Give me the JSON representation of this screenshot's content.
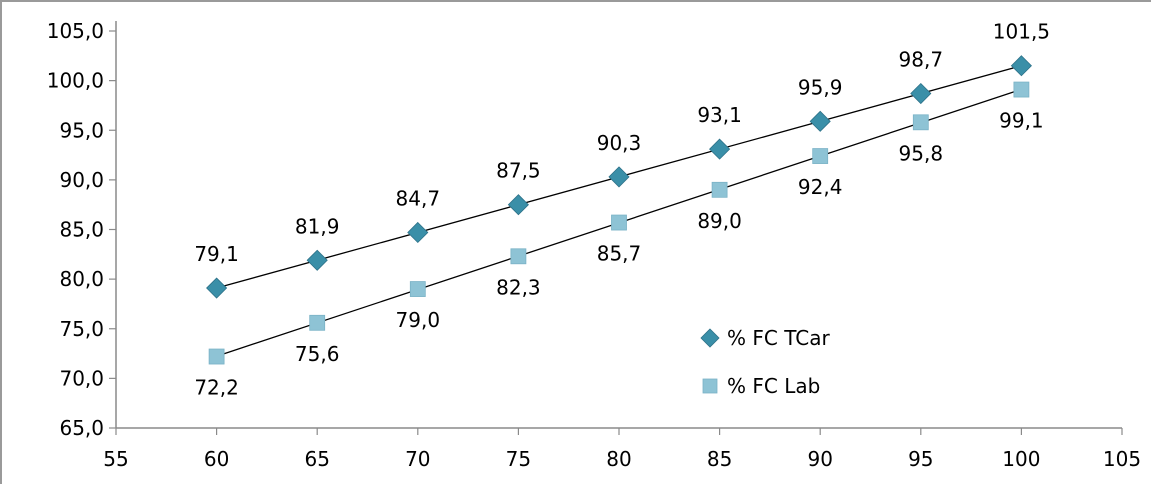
{
  "chart_data": {
    "type": "scatter",
    "title": "",
    "xlabel": "",
    "ylabel": "",
    "xlim": [
      55,
      105
    ],
    "ylim": [
      65,
      105
    ],
    "x_ticks": [
      55,
      60,
      65,
      70,
      75,
      80,
      85,
      90,
      95,
      100,
      105
    ],
    "x_tick_labels": [
      "55",
      "60",
      "65",
      "70",
      "75",
      "80",
      "85",
      "90",
      "95",
      "100",
      "105"
    ],
    "y_ticks": [
      65,
      70,
      75,
      80,
      85,
      90,
      95,
      100,
      105
    ],
    "y_tick_labels": [
      "65,0",
      "70,0",
      "75,0",
      "80,0",
      "85,0",
      "90,0",
      "95,0",
      "100,0",
      "105,0"
    ],
    "grid": false,
    "trendlines": true,
    "legend_position": "lower-right-inside",
    "series": [
      {
        "name": "% FC TCar",
        "marker": "diamond",
        "color": "#3a8fa8",
        "x": [
          60,
          65,
          70,
          75,
          80,
          85,
          90,
          95,
          100
        ],
        "y": [
          79.1,
          81.9,
          84.7,
          87.5,
          90.3,
          93.1,
          95.9,
          98.7,
          101.5
        ],
        "labels": [
          "79,1",
          "81,9",
          "84,7",
          "87,5",
          "90,3",
          "93,1",
          "95,9",
          "98,7",
          "101,5"
        ],
        "label_position": "above"
      },
      {
        "name": "% FC Lab",
        "marker": "square",
        "color": "#8ec3d5",
        "x": [
          60,
          65,
          70,
          75,
          80,
          85,
          90,
          95,
          100
        ],
        "y": [
          72.2,
          75.6,
          79.0,
          82.3,
          85.7,
          89.0,
          92.4,
          95.8,
          99.1
        ],
        "labels": [
          "72,2",
          "75,6",
          "79,0",
          "82,3",
          "85,7",
          "89,0",
          "92,4",
          "95,8",
          "99,1"
        ],
        "label_position": "below"
      }
    ]
  }
}
